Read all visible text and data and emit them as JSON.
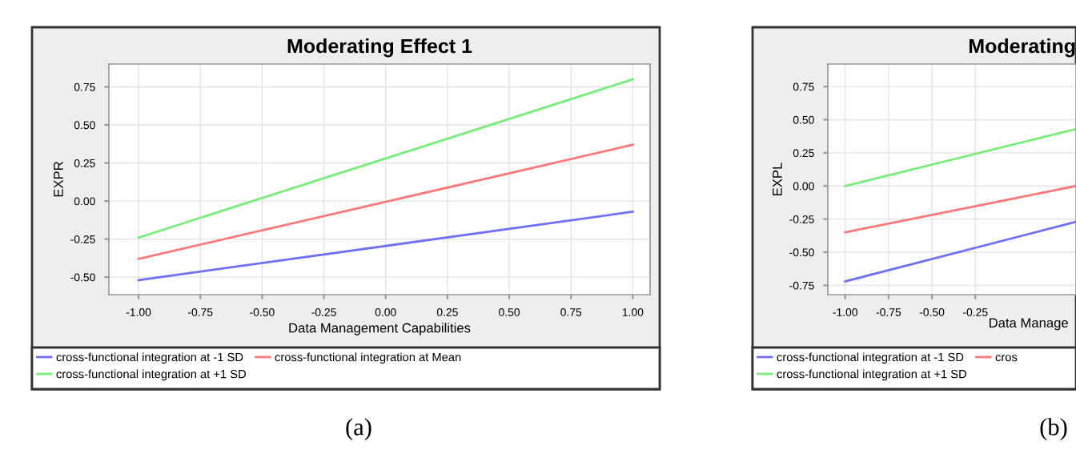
{
  "chart_data": [
    {
      "type": "line",
      "title": "Moderating Effect 1",
      "xlabel": "Data Management Capabilities",
      "ylabel": "EXPR",
      "x": [
        -1,
        1
      ],
      "series": [
        {
          "name": "cross-functional integration at -1 SD",
          "color": "#7070ff",
          "values": [
            -0.52,
            -0.07
          ]
        },
        {
          "name": "cross-functional integration at Mean",
          "color": "#ff7777",
          "values": [
            -0.38,
            0.37
          ]
        },
        {
          "name": "cross-functional integration at +1 SD",
          "color": "#77ee77",
          "values": [
            -0.24,
            0.8
          ]
        }
      ],
      "xlim": [
        -1.12,
        1.07
      ],
      "ylim": [
        -0.615,
        0.9
      ],
      "xticks": [
        {
          "value": -1,
          "label": "-1.00"
        },
        {
          "value": -0.75,
          "label": "-0.75"
        },
        {
          "value": -0.5,
          "label": "-0.50"
        },
        {
          "value": -0.25,
          "label": "-0.25"
        },
        {
          "value": 0,
          "label": "0.00"
        },
        {
          "value": 0.25,
          "label": "0.25"
        },
        {
          "value": 0.5,
          "label": "0.50"
        },
        {
          "value": 0.75,
          "label": "0.75"
        },
        {
          "value": 1,
          "label": "1.00"
        }
      ],
      "yticks": [
        {
          "value": -0.5,
          "label": "-0.50"
        },
        {
          "value": -0.25,
          "label": "-0.25"
        },
        {
          "value": 0,
          "label": "0.00"
        },
        {
          "value": 0.25,
          "label": "0.25"
        },
        {
          "value": 0.5,
          "label": "0.50"
        },
        {
          "value": 0.75,
          "label": "0.75"
        }
      ],
      "grid": true,
      "legend": "bottom",
      "marker": "none",
      "line_style": "solid",
      "annotations": [
        "(a)"
      ]
    },
    {
      "type": "line",
      "title": "Moderating",
      "xlabel": "Data Manage",
      "ylabel": "EXPL",
      "x": [
        -1,
        0.33
      ],
      "series": [
        {
          "name": "cross-functional integration at -1 SD",
          "color": "#7070ff",
          "values": [
            -0.72,
            -0.27
          ]
        },
        {
          "name": "cros",
          "color": "#ff7777",
          "values": [
            -0.35,
            0.0
          ]
        },
        {
          "name": "cross-functional integration at +1 SD",
          "color": "#77ee77",
          "values": [
            0.0,
            0.43
          ]
        }
      ],
      "xlim": [
        -1.1,
        0.33
      ],
      "ylim": [
        -0.82,
        0.92
      ],
      "xticks": [
        {
          "value": -1,
          "label": "-1.00"
        },
        {
          "value": -0.75,
          "label": "-0.75"
        },
        {
          "value": -0.5,
          "label": "-0.50"
        },
        {
          "value": -0.25,
          "label": "-0.25"
        }
      ],
      "yticks": [
        {
          "value": -0.75,
          "label": "-0.75"
        },
        {
          "value": -0.5,
          "label": "-0.50"
        },
        {
          "value": -0.25,
          "label": "-0.25"
        },
        {
          "value": 0,
          "label": "0.00"
        },
        {
          "value": 0.25,
          "label": "0.25"
        },
        {
          "value": 0.5,
          "label": "0.50"
        },
        {
          "value": 0.75,
          "label": "0.75"
        }
      ],
      "grid": true,
      "legend": "bottom",
      "marker": "none",
      "line_style": "solid",
      "annotations": [
        "(b)"
      ]
    }
  ]
}
